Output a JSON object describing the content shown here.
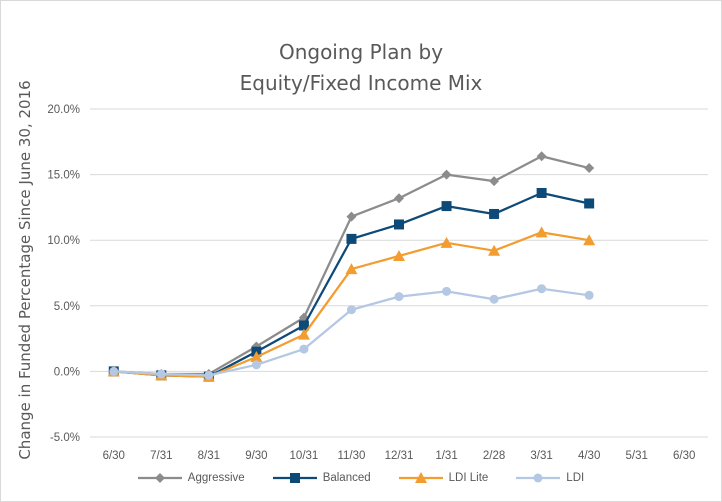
{
  "chart_data": {
    "type": "line",
    "title": [
      "Ongoing Plan by",
      "Equity/Fixed Income Mix"
    ],
    "ylabel": "Change in Funded Percentage Since June 30, 2016",
    "xlabel": "",
    "categories": [
      "6/30",
      "7/31",
      "8/31",
      "9/30",
      "10/31",
      "11/30",
      "12/31",
      "1/31",
      "2/28",
      "3/31",
      "4/30",
      "5/31",
      "6/30"
    ],
    "y_ticks": [
      "20.0%",
      "15.0%",
      "10.0%",
      "5.0%",
      "0.0%",
      "-5.0%"
    ],
    "ylim": [
      -5.0,
      20.0
    ],
    "y_unit": "percent",
    "grid": "horizontal",
    "legend_position": "bottom",
    "series": [
      {
        "name": "Aggressive",
        "color": "#8c8c8c",
        "marker": "diamond",
        "values": [
          0.0,
          -0.2,
          -0.2,
          1.9,
          4.1,
          11.8,
          13.2,
          15.0,
          14.5,
          16.4,
          15.5,
          null,
          null
        ]
      },
      {
        "name": "Balanced",
        "color": "#0d4a78",
        "marker": "square",
        "values": [
          0.0,
          -0.3,
          -0.4,
          1.5,
          3.5,
          10.1,
          11.2,
          12.6,
          12.0,
          13.6,
          12.8,
          null,
          null
        ]
      },
      {
        "name": "LDI Lite",
        "color": "#f39c2f",
        "marker": "triangle",
        "values": [
          0.0,
          -0.3,
          -0.4,
          1.1,
          2.8,
          7.8,
          8.8,
          9.8,
          9.2,
          10.6,
          10.0,
          null,
          null
        ]
      },
      {
        "name": "LDI",
        "color": "#b4c7e3",
        "marker": "circle",
        "values": [
          0.0,
          -0.2,
          -0.3,
          0.5,
          1.7,
          4.7,
          5.7,
          6.1,
          5.5,
          6.3,
          5.8,
          null,
          null
        ]
      }
    ]
  }
}
